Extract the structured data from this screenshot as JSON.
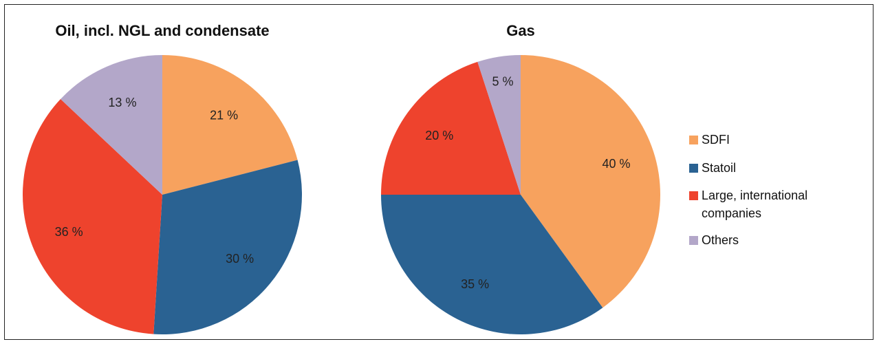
{
  "chart_data": [
    {
      "type": "pie",
      "title": "Oil, incl. NGL and condensate",
      "categories": [
        "SDFI",
        "Statoil",
        "Large, international companies",
        "Others"
      ],
      "values": [
        21,
        30,
        36,
        13
      ],
      "labels": [
        "21 %",
        "30 %",
        "36 %",
        "13 %"
      ]
    },
    {
      "type": "pie",
      "title": "Gas",
      "categories": [
        "SDFI",
        "Statoil",
        "Large, international companies",
        "Others"
      ],
      "values": [
        40,
        35,
        20,
        5
      ],
      "labels": [
        "40 %",
        "35 %",
        "20 %",
        "5 %"
      ]
    }
  ],
  "legend": {
    "placement": "right",
    "items": [
      {
        "lines": [
          "SDFI"
        ],
        "color": "#F7A25E"
      },
      {
        "lines": [
          "Statoil"
        ],
        "color": "#2A6292"
      },
      {
        "lines": [
          "Large, international",
          "companies"
        ],
        "color": "#EE432D"
      },
      {
        "lines": [
          "Others"
        ],
        "color": "#B3A7C9"
      }
    ]
  },
  "colors": [
    "#F7A25E",
    "#2A6292",
    "#EE432D",
    "#B3A7C9"
  ]
}
